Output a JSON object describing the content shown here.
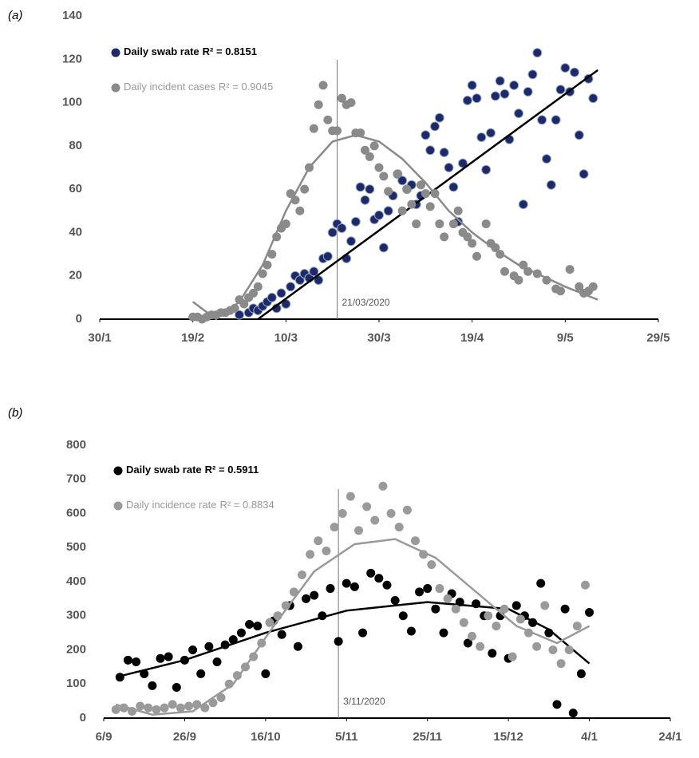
{
  "chart_data": [
    {
      "type": "scatter",
      "panel_label": "(a)",
      "xlim": [
        30,
        150
      ],
      "xticks": [
        {
          "value": 30,
          "label": "30/1"
        },
        {
          "value": 50,
          "label": "19/2"
        },
        {
          "value": 70,
          "label": "10/3"
        },
        {
          "value": 90,
          "label": "30/3"
        },
        {
          "value": 110,
          "label": "19/4"
        },
        {
          "value": 130,
          "label": "9/5"
        },
        {
          "value": 150,
          "label": "29/5"
        }
      ],
      "ylim": [
        0,
        140
      ],
      "yticks": [
        0,
        20,
        40,
        60,
        80,
        100,
        120,
        140
      ],
      "annotation": {
        "x": 81,
        "text": "21/03/2020"
      },
      "series": [
        {
          "name": "Daily swab rate",
          "r_squared": "R² = 0.8151",
          "color": "#1c2a6b",
          "x": [
            60,
            62,
            63,
            64,
            65,
            66,
            67,
            68,
            69,
            70,
            71,
            72,
            73,
            74,
            75,
            76,
            77,
            78,
            79,
            80,
            81,
            82,
            83,
            84,
            85,
            86,
            87,
            88,
            89,
            90,
            91,
            92,
            93,
            94,
            95,
            96,
            97,
            98,
            99,
            100,
            101,
            102,
            103,
            104,
            105,
            106,
            107,
            108,
            109,
            110,
            111,
            112,
            113,
            114,
            115,
            116,
            117,
            118,
            119,
            120,
            121,
            122,
            123,
            124,
            125,
            126,
            127,
            128,
            129,
            130,
            131,
            132,
            133,
            134,
            135,
            136
          ],
          "values": [
            2,
            3,
            5,
            4,
            6,
            8,
            10,
            5,
            12,
            7,
            15,
            20,
            18,
            21,
            19,
            22,
            18,
            28,
            29,
            40,
            44,
            42,
            28,
            36,
            45,
            61,
            55,
            60,
            46,
            48,
            33,
            50,
            57,
            67,
            64,
            60,
            62,
            53,
            57,
            85,
            78,
            89,
            93,
            77,
            70,
            61,
            45,
            72,
            101,
            108,
            102,
            84,
            69,
            86,
            103,
            110,
            104,
            83,
            108,
            95,
            53,
            105,
            113,
            123,
            92,
            74,
            62,
            92,
            106,
            116,
            105,
            114,
            85,
            67,
            111,
            102
          ],
          "trend": {
            "x": [
              64,
              137
            ],
            "values": [
              0,
              115
            ]
          }
        },
        {
          "name": "Daily incident cases",
          "r_squared": "R² = 0.9045",
          "color": "#8a8a8a",
          "x": [
            50,
            51,
            52,
            53,
            54,
            55,
            56,
            57,
            58,
            59,
            60,
            61,
            62,
            63,
            64,
            65,
            66,
            67,
            68,
            69,
            70,
            71,
            72,
            73,
            74,
            75,
            76,
            77,
            78,
            79,
            80,
            81,
            82,
            83,
            84,
            85,
            86,
            87,
            88,
            89,
            90,
            91,
            92,
            94,
            95,
            96,
            97,
            98,
            99,
            100,
            101,
            102,
            103,
            104,
            106,
            107,
            108,
            109,
            110,
            111,
            113,
            114,
            115,
            116,
            117,
            119,
            120,
            121,
            122,
            124,
            126,
            128,
            129,
            131,
            133,
            134,
            135,
            136
          ],
          "values": [
            1,
            1,
            0,
            1,
            2,
            2,
            3,
            3,
            4,
            5,
            9,
            7,
            10,
            12,
            15,
            21,
            25,
            30,
            38,
            42,
            44,
            58,
            55,
            50,
            60,
            70,
            88,
            99,
            108,
            92,
            87,
            87,
            102,
            99,
            100,
            86,
            86,
            78,
            75,
            80,
            70,
            66,
            59,
            67,
            50,
            60,
            53,
            44,
            62,
            58,
            52,
            58,
            44,
            38,
            44,
            50,
            40,
            38,
            35,
            29,
            44,
            35,
            33,
            30,
            22,
            20,
            18,
            25,
            22,
            21,
            18,
            14,
            13,
            23,
            15,
            12,
            13,
            15
          ],
          "trend": {
            "x": [
              50,
              55,
              60,
              65,
              70,
              75,
              80,
              85,
              90,
              95,
              100,
              105,
              110,
              115,
              120,
              125,
              130,
              137
            ],
            "values": [
              8,
              0,
              8,
              25,
              50,
              70,
              82,
              85,
              82,
              74,
              63,
              50,
              40,
              32,
              25,
              20,
              15,
              9
            ]
          }
        }
      ]
    },
    {
      "type": "scatter",
      "panel_label": "(b)",
      "xlim": [
        250,
        390
      ],
      "xticks": [
        {
          "value": 250,
          "label": "6/9"
        },
        {
          "value": 270,
          "label": "26/9"
        },
        {
          "value": 290,
          "label": "16/10"
        },
        {
          "value": 310,
          "label": "5/11"
        },
        {
          "value": 330,
          "label": "25/11"
        },
        {
          "value": 350,
          "label": "15/12"
        },
        {
          "value": 370,
          "label": "4/1"
        },
        {
          "value": 390,
          "label": "24/1"
        }
      ],
      "ylim": [
        0,
        800
      ],
      "yticks": [
        0,
        100,
        200,
        300,
        400,
        500,
        600,
        700,
        800
      ],
      "annotation": {
        "x": 308,
        "text": "3/11/2020"
      },
      "series": [
        {
          "name": "Daily swab rate",
          "r_squared": "R² = 0.5911",
          "color": "#000000",
          "x": [
            254,
            256,
            258,
            260,
            262,
            264,
            266,
            268,
            270,
            272,
            274,
            276,
            278,
            280,
            282,
            284,
            286,
            288,
            290,
            292,
            294,
            296,
            298,
            300,
            302,
            304,
            306,
            308,
            310,
            312,
            314,
            316,
            318,
            320,
            322,
            324,
            326,
            328,
            330,
            332,
            334,
            336,
            338,
            340,
            342,
            344,
            346,
            348,
            350,
            352,
            354,
            356,
            358,
            360,
            362,
            364,
            366,
            368,
            370
          ],
          "values": [
            120,
            170,
            165,
            130,
            95,
            175,
            180,
            90,
            170,
            200,
            130,
            210,
            165,
            215,
            230,
            250,
            275,
            270,
            130,
            285,
            245,
            330,
            210,
            350,
            360,
            300,
            380,
            225,
            395,
            385,
            250,
            425,
            410,
            390,
            345,
            300,
            255,
            370,
            380,
            320,
            250,
            365,
            340,
            220,
            335,
            300,
            190,
            300,
            175,
            330,
            300,
            280,
            395,
            250,
            40,
            320,
            15,
            130,
            310
          ],
          "trend": {
            "x": [
              253,
              270,
              290,
              310,
              330,
              350,
              360,
              370
            ],
            "values": [
              120,
              170,
              250,
              315,
              340,
              320,
              260,
              160
            ]
          }
        },
        {
          "name": "Daily incidence rate",
          "r_squared": "R² = 0.8834",
          "color": "#9a9a9a",
          "x": [
            253,
            255,
            257,
            259,
            261,
            263,
            265,
            267,
            269,
            271,
            273,
            275,
            277,
            279,
            281,
            283,
            285,
            287,
            289,
            291,
            293,
            295,
            297,
            299,
            301,
            303,
            305,
            307,
            309,
            311,
            313,
            315,
            317,
            319,
            321,
            323,
            325,
            327,
            329,
            331,
            333,
            335,
            337,
            339,
            341,
            343,
            345,
            347,
            349,
            351,
            353,
            355,
            357,
            359,
            361,
            363,
            365,
            367,
            369
          ],
          "values": [
            25,
            30,
            20,
            35,
            30,
            25,
            30,
            40,
            30,
            35,
            40,
            30,
            45,
            60,
            100,
            125,
            150,
            180,
            220,
            280,
            300,
            330,
            370,
            420,
            480,
            520,
            490,
            560,
            600,
            650,
            550,
            620,
            580,
            680,
            600,
            560,
            610,
            520,
            480,
            450,
            380,
            350,
            320,
            280,
            240,
            210,
            300,
            270,
            320,
            180,
            290,
            250,
            210,
            330,
            200,
            160,
            200,
            270,
            390
          ],
          "trend": {
            "x": [
              253,
              262,
              272,
              282,
              292,
              302,
              312,
              322,
              332,
              342,
              352,
              362,
              370
            ],
            "values": [
              40,
              10,
              20,
              100,
              270,
              430,
              510,
              525,
              470,
              370,
              270,
              220,
              270
            ]
          }
        }
      ]
    }
  ]
}
